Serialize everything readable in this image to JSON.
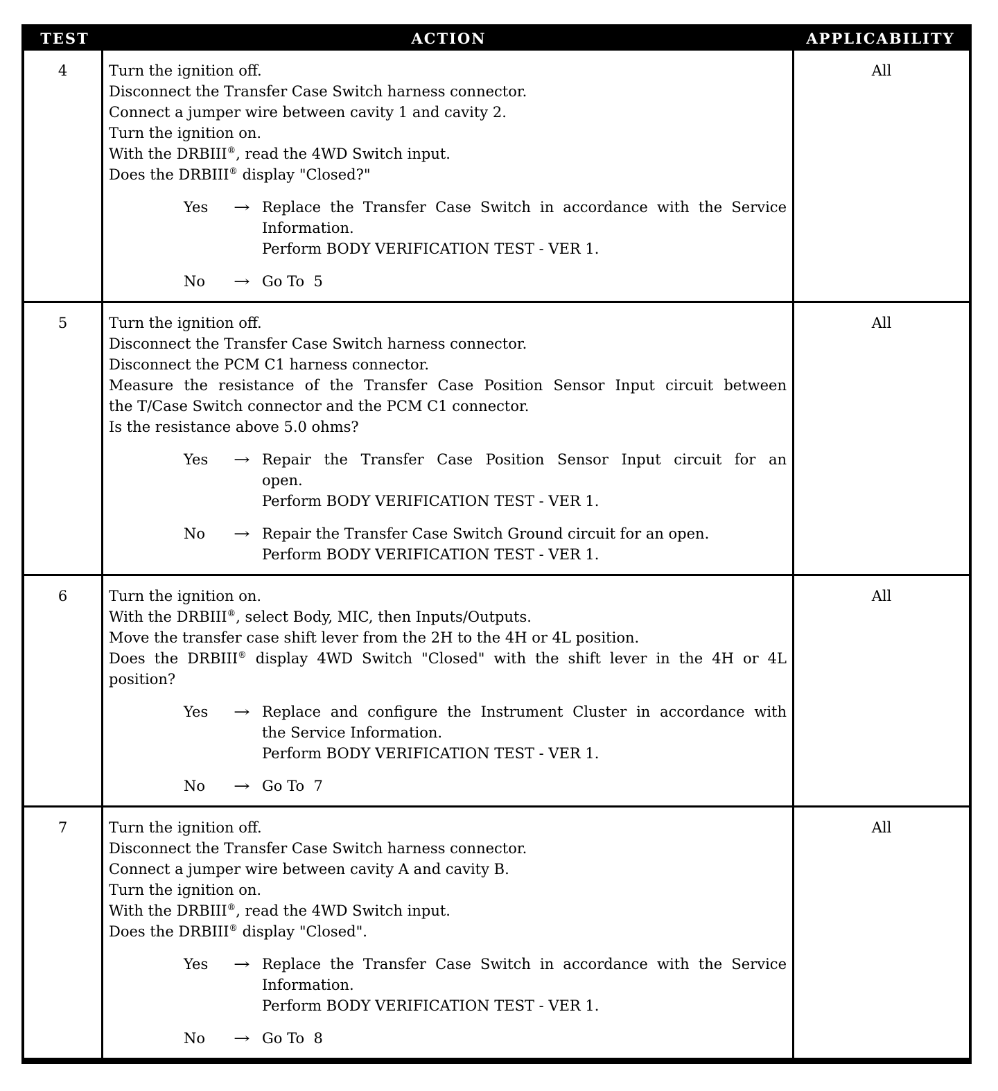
{
  "colors": {
    "header_bg": "#000000",
    "header_text": "#ffffff",
    "border": "#000000",
    "text": "#000000",
    "page_bg": "#ffffff"
  },
  "table": {
    "columns": [
      "TEST",
      "ACTION",
      "APPLICABILITY"
    ],
    "arrow": "→",
    "rows": [
      {
        "test": "4",
        "applicability": "All",
        "instructions": [
          [
            "Turn the ignition off."
          ],
          [
            "Disconnect the Transfer Case Switch harness connector."
          ],
          [
            "Connect a jumper wire between cavity 1 and cavity 2."
          ],
          [
            "Turn the ignition on."
          ],
          [
            "With the DRBIII®, read the 4WD Switch input."
          ],
          [
            "Does the DRBIII® display \"Closed?\""
          ]
        ],
        "branches": [
          {
            "answer": "Yes",
            "result": [
              [
                "Replace the Transfer Case Switch in accordance with the Service",
                "Information."
              ],
              [
                "Perform BODY VERIFICATION TEST - VER 1."
              ]
            ]
          },
          {
            "answer": "No",
            "result": [
              [
                "Go To  5"
              ]
            ]
          }
        ]
      },
      {
        "test": "5",
        "applicability": "All",
        "instructions": [
          [
            "Turn the ignition off."
          ],
          [
            "Disconnect the Transfer Case Switch harness connector."
          ],
          [
            "Disconnect the PCM C1 harness connector."
          ],
          [
            "Measure the resistance of the Transfer Case Position Sensor Input circuit between",
            "the T/Case Switch connector and the PCM C1 connector."
          ],
          [
            "Is the resistance above 5.0 ohms?"
          ]
        ],
        "branches": [
          {
            "answer": "Yes",
            "result": [
              [
                "Repair the Transfer Case Position Sensor Input circuit for an",
                "open."
              ],
              [
                "Perform BODY VERIFICATION TEST - VER 1."
              ]
            ]
          },
          {
            "answer": "No",
            "result": [
              [
                "Repair the Transfer Case Switch Ground circuit for an open."
              ],
              [
                "Perform BODY VERIFICATION TEST - VER 1."
              ]
            ]
          }
        ]
      },
      {
        "test": "6",
        "applicability": "All",
        "instructions": [
          [
            "Turn the ignition on."
          ],
          [
            "With the DRBIII®, select Body, MIC, then Inputs/Outputs."
          ],
          [
            "Move the transfer case shift lever from the 2H to the 4H or 4L position."
          ],
          [
            "Does the DRBIII® display 4WD Switch \"Closed\" with the shift lever in the 4H or 4L",
            "position?"
          ]
        ],
        "branches": [
          {
            "answer": "Yes",
            "result": [
              [
                "Replace and configure the Instrument Cluster in accordance with",
                "the Service Information."
              ],
              [
                "Perform BODY VERIFICATION TEST - VER 1."
              ]
            ]
          },
          {
            "answer": "No",
            "result": [
              [
                "Go To  7"
              ]
            ]
          }
        ]
      },
      {
        "test": "7",
        "applicability": "All",
        "instructions": [
          [
            "Turn the ignition off."
          ],
          [
            "Disconnect the Transfer Case Switch harness connector."
          ],
          [
            "Connect a jumper wire between cavity A and cavity B."
          ],
          [
            "Turn the ignition on."
          ],
          [
            "With the DRBIII®, read the 4WD Switch input."
          ],
          [
            "Does the DRBIII® display \"Closed\"."
          ]
        ],
        "branches": [
          {
            "answer": "Yes",
            "result": [
              [
                "Replace the Transfer Case Switch in accordance with the Service",
                "Information."
              ],
              [
                "Perform BODY VERIFICATION TEST - VER 1."
              ]
            ]
          },
          {
            "answer": "No",
            "result": [
              [
                "Go To  8"
              ]
            ]
          }
        ]
      }
    ]
  }
}
